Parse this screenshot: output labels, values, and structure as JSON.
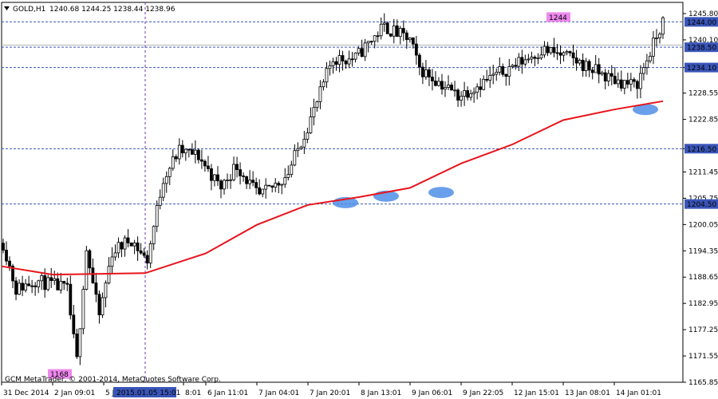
{
  "header": {
    "symbol_label": "GOLD,H1",
    "ohlc_label": "1240.68 1244.25 1238.44 1238.96"
  },
  "footer": {
    "copyright": "GCM MetaTrader, © 2001-2014, MetaQuotes Software Corp."
  },
  "crosshair_time_label": "2015.01.05 15:01",
  "chart_data": {
    "type": "candlestick",
    "instrument": "GOLD",
    "timeframe": "H1",
    "ylim": [
      1165.85,
      1245.8
    ],
    "y_ticks": [
      "1245.80",
      "1240.10",
      "1234.10",
      "1228.55",
      "1222.85",
      "1216.50",
      "1211.45",
      "1205.75",
      "1200.05",
      "1194.35",
      "1188.65",
      "1182.95",
      "1177.25",
      "1171.55",
      "1165.85"
    ],
    "x_ticks": [
      "31 Dec 2014",
      "2 Jan 09:01",
      "5 J",
      "8:01",
      "6 Jan 11:01",
      "7 Jan 04:01",
      "7 Jan 20:01",
      "8 Jan 13:01",
      "9 Jan 06:01",
      "9 Jan 22:05",
      "12 Jan 15:01",
      "13 Jan 08:01",
      "14 Jan 01:01"
    ],
    "horizontal_levels": [
      {
        "value": 1244.0,
        "label": "1244.00"
      },
      {
        "value": 1238.5,
        "label": "1238.50"
      },
      {
        "value": 1234.1,
        "label": "1234.10"
      },
      {
        "value": 1216.5,
        "label": "1216.50"
      },
      {
        "value": 1204.5,
        "label": "1204.50"
      }
    ],
    "annotations": [
      {
        "text": "1244",
        "value": 1244.0
      },
      {
        "text": "1168",
        "value": 1168.0
      }
    ],
    "moving_average": {
      "color": "#e8141c",
      "points": [
        [
          "31 Dec 2014",
          1191.0
        ],
        [
          "2 Jan 09:01",
          1189.2
        ],
        [
          "5 Jan 15:01",
          1189.5
        ],
        [
          "6 Jan 11:01",
          1193.8
        ],
        [
          "7 Jan 04:01",
          1200.0
        ],
        [
          "7 Jan 20:01",
          1204.3
        ],
        [
          "8 Jan 13:01",
          1206.0
        ],
        [
          "9 Jan 06:01",
          1208.0
        ],
        [
          "9 Jan 22:05",
          1213.3
        ],
        [
          "12 Jan 15:01",
          1217.4
        ],
        [
          "13 Jan 08:01",
          1222.7
        ],
        [
          "14 Jan 01:01",
          1225.0
        ],
        [
          "14 Jan 10:01",
          1226.8
        ]
      ]
    },
    "highlight_ellipses": [
      {
        "x": "7 Jan 20:01",
        "value": 1204.8
      },
      {
        "x": "8 Jan 13:01",
        "value": 1206.2
      },
      {
        "x": "9 Jan 06:01",
        "value": 1207.0
      },
      {
        "x": "14 Jan 01:01",
        "value": 1225.0
      }
    ],
    "colors": {
      "candle": "#000000",
      "level_line": "#3a55b8",
      "label_bg": "#3a55b8",
      "ellipse": "#4f8ee8",
      "annotation_bg": "#ee88ee"
    }
  }
}
